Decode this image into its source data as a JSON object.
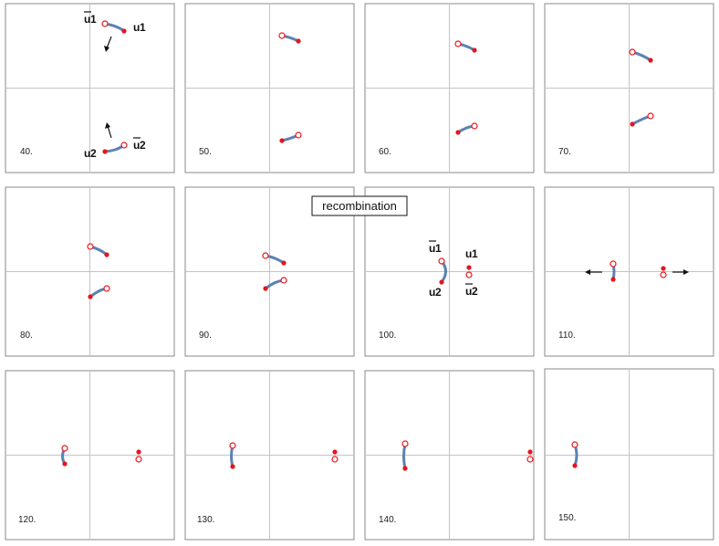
{
  "banner": "recombination",
  "frames": [
    {
      "time": "40."
    },
    {
      "time": "50."
    },
    {
      "time": "60."
    },
    {
      "time": "70."
    },
    {
      "time": "80."
    },
    {
      "time": "90."
    },
    {
      "time": "100."
    },
    {
      "time": "110."
    },
    {
      "time": "120."
    },
    {
      "time": "130."
    },
    {
      "time": "140."
    },
    {
      "time": "150."
    }
  ],
  "labels": {
    "u1": "u",
    "u1_sub": "1",
    "u2": "u",
    "u2_sub": "2",
    "ubar1": "u",
    "ubar1_sub": "1",
    "ubar2": "u",
    "ubar2_sub": "2"
  },
  "colors": {
    "quark": "#e8141c",
    "string": "#5b82b5",
    "axis": "#c4c4c4",
    "frame": "#8a8a8a"
  },
  "legend_symbols": {
    "quark": "filled red circle",
    "antiquark": "open red circle"
  }
}
